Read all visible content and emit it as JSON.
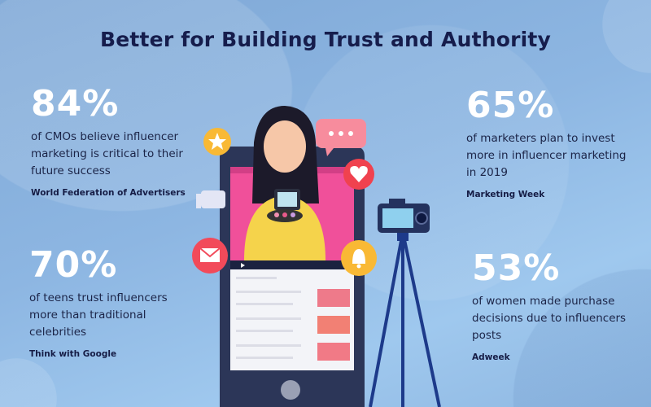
{
  "title": "Better for Building Trust and Authority",
  "stats": [
    {
      "value": "84%",
      "description": "of CMOs believe influencer marketing is critical to their future success",
      "source": "World Federation of Advertisers"
    },
    {
      "value": "65%",
      "description": "of marketers plan to invest more in influencer marketing in 2019",
      "source": "Marketing Week"
    },
    {
      "value": "70%",
      "description": "of teens trust influencers more than traditional celebrities",
      "source": "Think with Google"
    },
    {
      "value": "53%",
      "description": "of women made purchase decisions due to influencers posts",
      "source": "Adweek"
    }
  ],
  "colors": {
    "title": "#161d4c",
    "text": "#1b2447",
    "phone": "#2c3658",
    "screen": "#f0509a"
  },
  "icons": [
    "star-icon",
    "chat-bubble-icon",
    "heart-icon",
    "thumbs-up-icon",
    "mail-icon",
    "bell-icon",
    "camera-icon",
    "tripod-icon"
  ]
}
